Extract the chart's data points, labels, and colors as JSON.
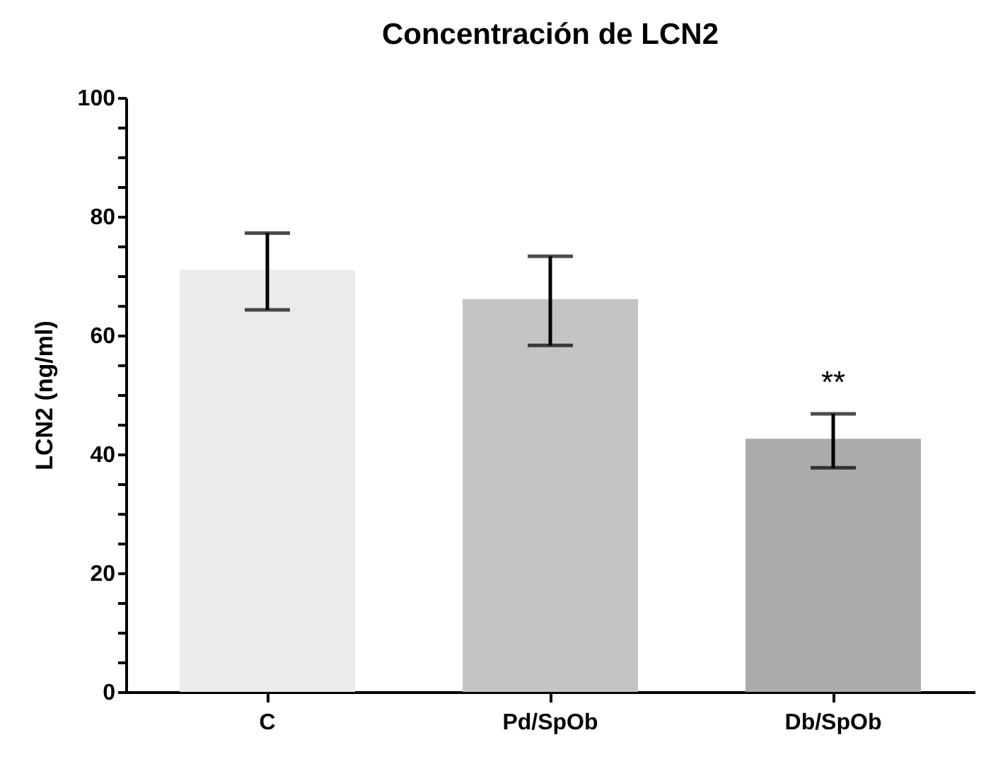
{
  "chart_data": {
    "type": "bar",
    "title": "Concentración de LCN2",
    "ylabel": "LCN2 (ng/ml)",
    "categories": [
      "C",
      "Pd/SpOb",
      "Db/SpOb"
    ],
    "values": [
      71.0,
      66.1,
      42.6
    ],
    "colors": [
      "#ebebeb",
      "#c4c4c4",
      "#ababab"
    ],
    "errors": [
      [
        64.3,
        77.2
      ],
      [
        58.3,
        73.3
      ],
      [
        37.7,
        46.8
      ]
    ],
    "annotations": [
      "**"
    ],
    "ylim": [
      0,
      100
    ],
    "yticks": [
      0,
      {
        "value": 5,
        "label": null
      },
      {
        "value": 10,
        "label": null
      },
      {
        "value": 15,
        "label": null
      },
      20,
      {
        "value": 25,
        "label": null
      },
      {
        "value": 30,
        "label": null
      },
      {
        "value": 35,
        "label": null
      },
      40,
      {
        "value": 45,
        "label": null
      },
      {
        "value": 50,
        "label": null
      },
      {
        "value": 55,
        "label": null
      },
      60,
      {
        "value": 65,
        "label": null
      },
      {
        "value": 70,
        "label": null
      },
      {
        "value": 75,
        "label": null
      },
      80,
      {
        "value": 85,
        "label": null
      },
      {
        "value": 90,
        "label": null
      },
      {
        "value": 95,
        "label": null
      },
      100
    ],
    "grid": false
  }
}
